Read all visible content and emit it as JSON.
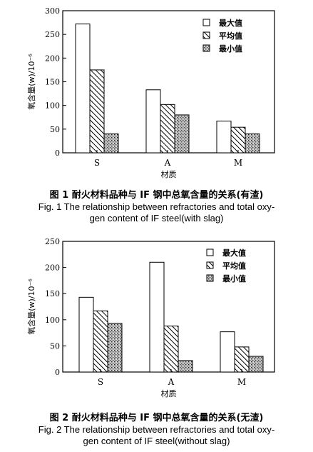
{
  "chart_data": [
    {
      "type": "bar",
      "categories": [
        "S",
        "A",
        "M"
      ],
      "series": [
        {
          "name": "最大值",
          "values": [
            272,
            133,
            67
          ]
        },
        {
          "name": "平均值",
          "values": [
            175,
            102,
            54
          ]
        },
        {
          "name": "最小值",
          "values": [
            40,
            80,
            40
          ]
        }
      ],
      "xlabel": "材质",
      "ylabel": "氧含量(w)/10⁻⁶",
      "ylim": [
        0,
        300
      ],
      "yticks": [
        0,
        50,
        100,
        150,
        200,
        250,
        300
      ],
      "legend": "top-right",
      "grid": false,
      "caption_cn": "图 1   耐火材料品种与 IF 钢中总氧含量的关系(有渣)",
      "caption_en_1": "Fig. 1 The relationship between refractories and total oxy-",
      "caption_en_2": "gen content of IF steel(with slag)"
    },
    {
      "type": "bar",
      "categories": [
        "S",
        "A",
        "M"
      ],
      "series": [
        {
          "name": "最大值",
          "values": [
            143,
            210,
            77
          ]
        },
        {
          "name": "平均值",
          "values": [
            117,
            88,
            48
          ]
        },
        {
          "name": "最小值",
          "values": [
            93,
            22,
            30
          ]
        }
      ],
      "xlabel": "材质",
      "ylabel": "氧含量(w)/10⁻⁶",
      "ylim": [
        0,
        250
      ],
      "yticks": [
        0,
        50,
        100,
        150,
        200,
        250
      ],
      "legend": "top-right",
      "grid": false,
      "caption_cn": "图 2   耐火材料品种与 IF 钢中总氧含量的关系(无渣)",
      "caption_en_1": "Fig. 2 The relationship between refractories and total oxy-",
      "caption_en_2": "gen content of IF steel(without slag)"
    }
  ]
}
